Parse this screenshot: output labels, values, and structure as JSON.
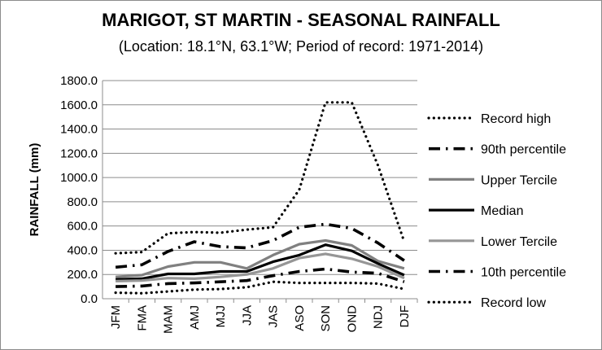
{
  "chart_data": {
    "type": "line",
    "title": "MARIGOT, ST MARTIN - SEASONAL RAINFALL",
    "subtitle": "(Location: 18.1°N, 63.1°W; Period of record: 1971-2014)",
    "ylabel": "RAINFALL (mm)",
    "xlabel": "",
    "categories": [
      "JFM",
      "FMA",
      "MAM",
      "AMJ",
      "MJJ",
      "JJA",
      "JAS",
      "ASO",
      "SON",
      "OND",
      "NDJ",
      "DJF"
    ],
    "ylim": [
      0,
      1800
    ],
    "yticks": [
      0,
      200,
      400,
      600,
      800,
      1000,
      1200,
      1400,
      1600,
      1800
    ],
    "ytick_labels": [
      "0.0",
      "200.0",
      "400.0",
      "600.0",
      "800.0",
      "1000.0",
      "1200.0",
      "1400.0",
      "1600.0",
      "1800.0"
    ],
    "grid": "horizontal",
    "legend_position": "right",
    "series": [
      {
        "name": "Record high",
        "style": "dotted",
        "color": "#000000",
        "values": [
          375,
          385,
          540,
          550,
          545,
          570,
          590,
          900,
          1620,
          1620,
          1100,
          470
        ]
      },
      {
        "name": "90th percentile",
        "style": "dashdot",
        "color": "#000000",
        "values": [
          260,
          280,
          390,
          470,
          430,
          420,
          480,
          590,
          615,
          580,
          460,
          315
        ]
      },
      {
        "name": "Upper Tercile",
        "style": "solid-thick",
        "color": "#808080",
        "values": [
          180,
          195,
          265,
          300,
          300,
          250,
          360,
          450,
          480,
          440,
          310,
          250
        ]
      },
      {
        "name": "Median",
        "style": "solid-thick",
        "color": "#000000",
        "values": [
          160,
          165,
          205,
          205,
          225,
          225,
          305,
          360,
          445,
          395,
          290,
          195
        ]
      },
      {
        "name": "Lower Tercile",
        "style": "solid-thick",
        "color": "#969696",
        "values": [
          145,
          150,
          170,
          165,
          180,
          200,
          250,
          335,
          370,
          330,
          265,
          170
        ]
      },
      {
        "name": "10th percentile",
        "style": "dashdot",
        "color": "#000000",
        "values": [
          100,
          105,
          125,
          130,
          140,
          150,
          190,
          225,
          245,
          220,
          210,
          140
        ]
      },
      {
        "name": "Record low",
        "style": "dotted",
        "color": "#000000",
        "values": [
          50,
          45,
          60,
          75,
          80,
          95,
          140,
          130,
          130,
          130,
          125,
          80
        ]
      }
    ]
  }
}
